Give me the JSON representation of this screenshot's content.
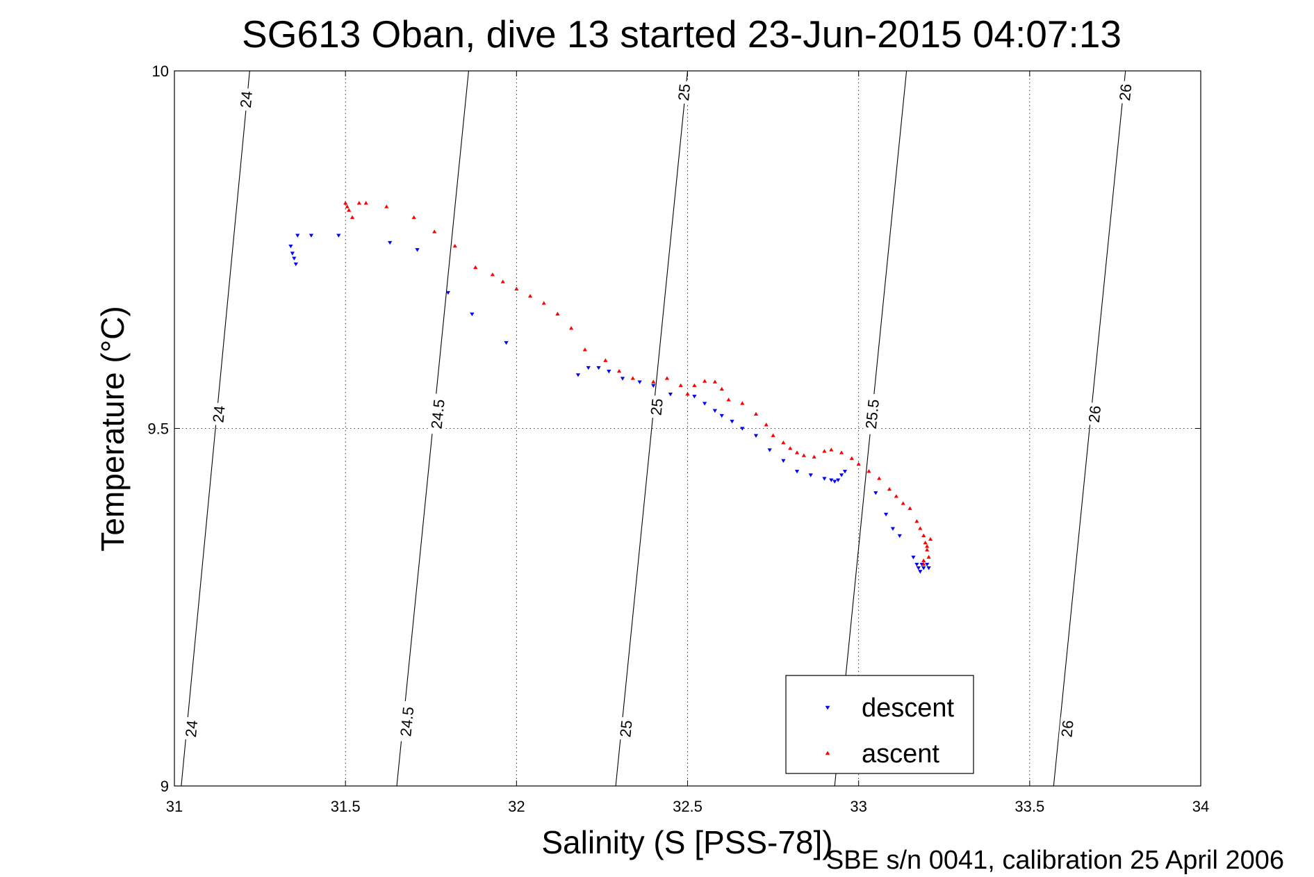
{
  "chart_data": {
    "type": "scatter",
    "title": "SG613 Oban, dive 13 started 23-Jun-2015 04:07:13",
    "xlabel": "Salinity (S [PSS-78])",
    "ylabel": "Temperature (°C)",
    "xlim": [
      31,
      34
    ],
    "ylim": [
      9,
      10
    ],
    "xticks": [
      31,
      31.5,
      32,
      32.5,
      33,
      33.5,
      34
    ],
    "xtick_labels": [
      "31",
      "31.5",
      "32",
      "32.5",
      "33",
      "33.5",
      "34"
    ],
    "yticks": [
      9,
      9.5,
      10
    ],
    "ytick_labels": [
      "9",
      "9.5",
      "10"
    ],
    "grid": true,
    "footnote": "SBE s/n 0041, calibration 25 April 2006",
    "legend": {
      "position": "bottom-right"
    },
    "density_contours": [
      {
        "label": "24",
        "points": [
          [
            31.02,
            9.0
          ],
          [
            31.22,
            10.0
          ]
        ],
        "label_positions": [
          [
            31.05,
            9.08
          ],
          [
            31.13,
            9.52
          ],
          [
            31.21,
            9.96
          ]
        ]
      },
      {
        "label": "24.5",
        "points": [
          [
            31.65,
            9.0
          ],
          [
            31.86,
            10.0
          ]
        ],
        "label_positions": [
          [
            31.68,
            9.09
          ],
          [
            31.77,
            9.52
          ]
        ]
      },
      {
        "label": "25",
        "points": [
          [
            32.29,
            9.0
          ],
          [
            32.5,
            10.0
          ]
        ],
        "label_positions": [
          [
            32.32,
            9.08
          ],
          [
            32.41,
            9.53
          ],
          [
            32.49,
            9.97
          ]
        ]
      },
      {
        "label": "25.5",
        "points": [
          [
            32.93,
            9.0
          ],
          [
            33.14,
            10.0
          ]
        ],
        "label_positions": [
          [
            33.04,
            9.52
          ]
        ]
      },
      {
        "label": "26",
        "points": [
          [
            33.57,
            9.0
          ],
          [
            33.78,
            10.0
          ]
        ],
        "label_positions": [
          [
            33.61,
            9.08
          ],
          [
            33.69,
            9.52
          ],
          [
            33.78,
            9.97
          ]
        ]
      }
    ],
    "series": [
      {
        "name": "descent",
        "color": "#0000ff",
        "marker": "triangle-down",
        "points": [
          [
            31.34,
            9.755
          ],
          [
            31.345,
            9.745
          ],
          [
            31.35,
            9.738
          ],
          [
            31.355,
            9.73
          ],
          [
            31.36,
            9.77
          ],
          [
            31.4,
            9.77
          ],
          [
            31.48,
            9.77
          ],
          [
            31.63,
            9.76
          ],
          [
            31.71,
            9.75
          ],
          [
            31.8,
            9.69
          ],
          [
            31.87,
            9.66
          ],
          [
            31.97,
            9.62
          ],
          [
            32.18,
            9.575
          ],
          [
            32.21,
            9.585
          ],
          [
            32.24,
            9.585
          ],
          [
            32.27,
            9.58
          ],
          [
            32.31,
            9.57
          ],
          [
            32.36,
            9.565
          ],
          [
            32.4,
            9.56
          ],
          [
            32.45,
            9.548
          ],
          [
            32.52,
            9.545
          ],
          [
            32.55,
            9.535
          ],
          [
            32.58,
            9.525
          ],
          [
            32.6,
            9.518
          ],
          [
            32.63,
            9.51
          ],
          [
            32.66,
            9.5
          ],
          [
            32.7,
            9.49
          ],
          [
            32.74,
            9.47
          ],
          [
            32.78,
            9.455
          ],
          [
            32.82,
            9.44
          ],
          [
            32.86,
            9.435
          ],
          [
            32.9,
            9.43
          ],
          [
            32.92,
            9.428
          ],
          [
            32.93,
            9.426
          ],
          [
            32.94,
            9.428
          ],
          [
            32.95,
            9.435
          ],
          [
            32.96,
            9.44
          ],
          [
            33.05,
            9.41
          ],
          [
            33.08,
            9.38
          ],
          [
            33.1,
            9.36
          ],
          [
            33.12,
            9.35
          ],
          [
            33.16,
            9.32
          ],
          [
            33.17,
            9.31
          ],
          [
            33.175,
            9.305
          ],
          [
            33.18,
            9.3
          ],
          [
            33.185,
            9.31
          ],
          [
            33.19,
            9.305
          ],
          [
            33.2,
            9.31
          ],
          [
            33.205,
            9.305
          ]
        ]
      },
      {
        "name": "ascent",
        "color": "#ff0000",
        "marker": "triangle-up",
        "points": [
          [
            31.5,
            9.815
          ],
          [
            31.505,
            9.81
          ],
          [
            31.51,
            9.805
          ],
          [
            31.52,
            9.795
          ],
          [
            31.54,
            9.815
          ],
          [
            31.56,
            9.815
          ],
          [
            31.62,
            9.81
          ],
          [
            31.7,
            9.795
          ],
          [
            31.76,
            9.775
          ],
          [
            31.82,
            9.755
          ],
          [
            31.88,
            9.725
          ],
          [
            31.93,
            9.715
          ],
          [
            31.96,
            9.705
          ],
          [
            32.0,
            9.695
          ],
          [
            32.04,
            9.685
          ],
          [
            32.08,
            9.675
          ],
          [
            32.12,
            9.66
          ],
          [
            32.16,
            9.64
          ],
          [
            32.2,
            9.61
          ],
          [
            32.26,
            9.595
          ],
          [
            32.3,
            9.58
          ],
          [
            32.34,
            9.57
          ],
          [
            32.4,
            9.565
          ],
          [
            32.44,
            9.57
          ],
          [
            32.48,
            9.56
          ],
          [
            32.5,
            9.548
          ],
          [
            32.52,
            9.56
          ],
          [
            32.55,
            9.566
          ],
          [
            32.58,
            9.565
          ],
          [
            32.6,
            9.555
          ],
          [
            32.62,
            9.54
          ],
          [
            32.66,
            9.535
          ],
          [
            32.7,
            9.52
          ],
          [
            32.73,
            9.505
          ],
          [
            32.75,
            9.49
          ],
          [
            32.78,
            9.48
          ],
          [
            32.8,
            9.472
          ],
          [
            32.82,
            9.466
          ],
          [
            32.84,
            9.462
          ],
          [
            32.87,
            9.46
          ],
          [
            32.9,
            9.468
          ],
          [
            32.92,
            9.47
          ],
          [
            32.95,
            9.466
          ],
          [
            32.98,
            9.458
          ],
          [
            33.0,
            9.45
          ],
          [
            33.03,
            9.44
          ],
          [
            33.06,
            9.43
          ],
          [
            33.09,
            9.415
          ],
          [
            33.11,
            9.405
          ],
          [
            33.13,
            9.395
          ],
          [
            33.15,
            9.388
          ],
          [
            33.17,
            9.37
          ],
          [
            33.18,
            9.36
          ],
          [
            33.19,
            9.35
          ],
          [
            33.195,
            9.34
          ],
          [
            33.2,
            9.33
          ],
          [
            33.205,
            9.32
          ],
          [
            33.19,
            9.315
          ],
          [
            33.2,
            9.335
          ],
          [
            33.21,
            9.345
          ],
          [
            33.19,
            9.31
          ]
        ]
      }
    ]
  }
}
